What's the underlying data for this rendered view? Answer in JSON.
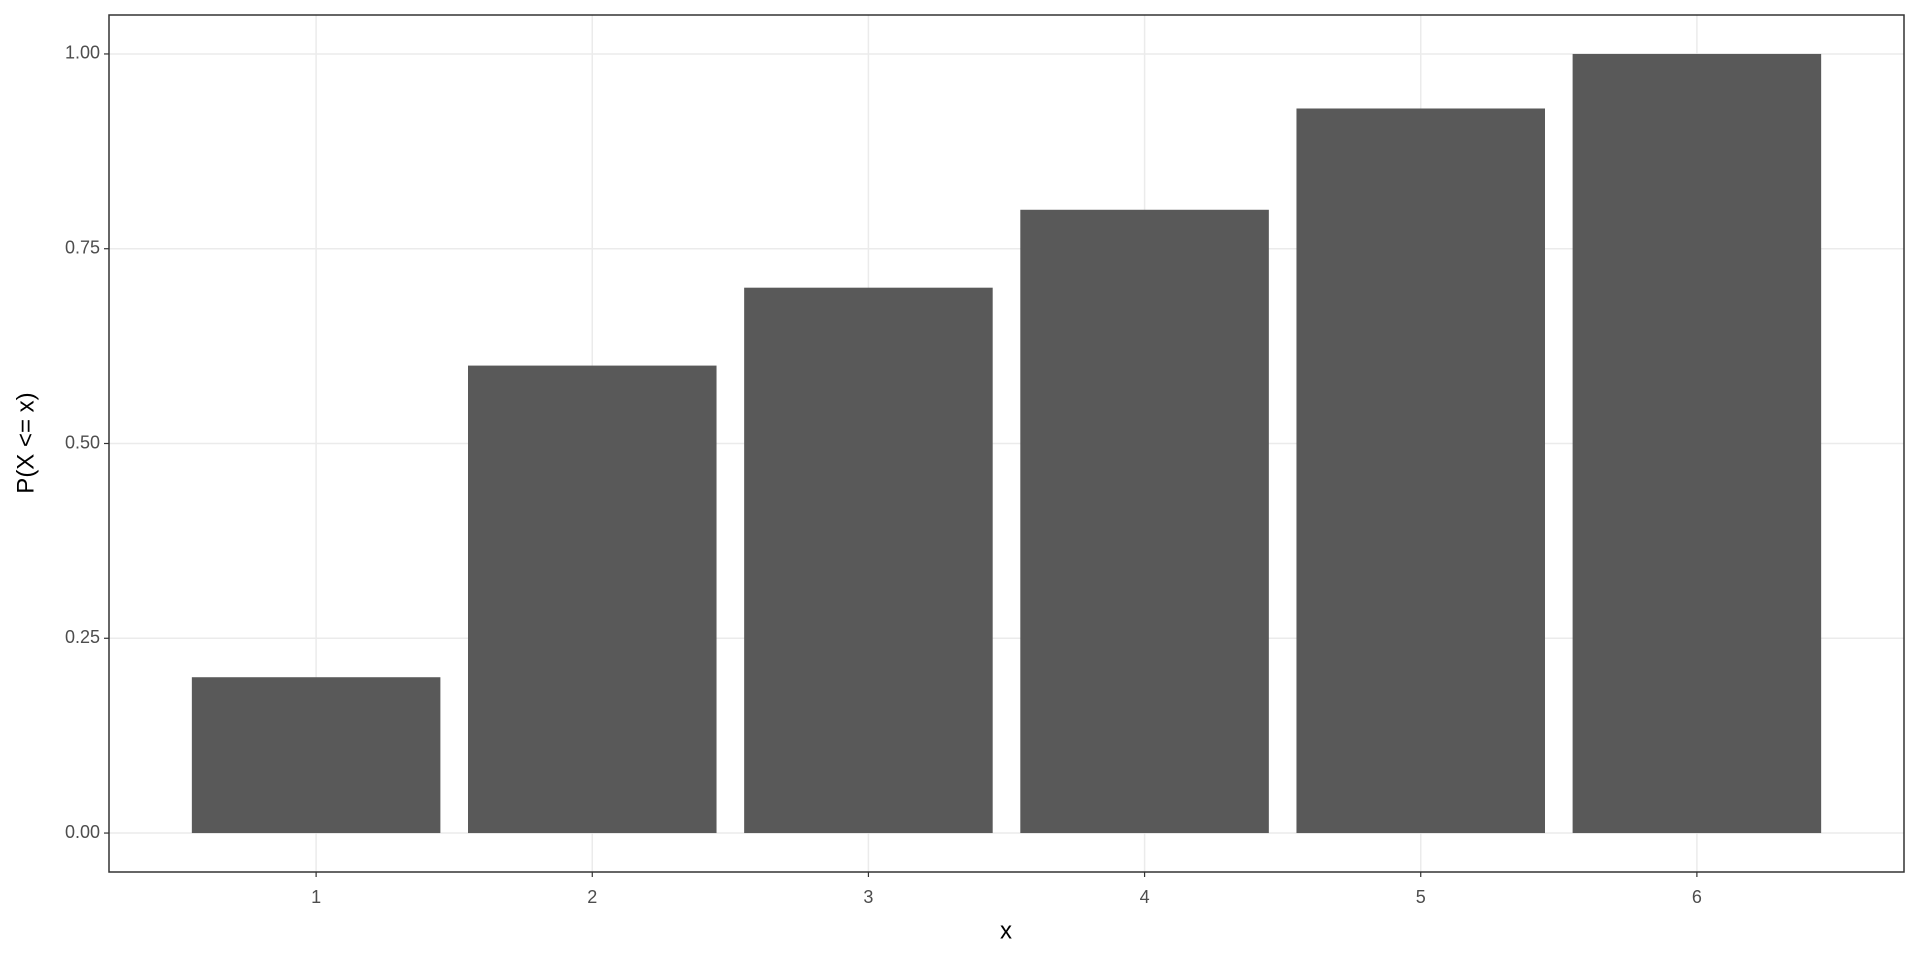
{
  "chart_data": {
    "type": "bar",
    "x_label": "x",
    "y_label": "P(X <= x)",
    "categories": [
      "1",
      "2",
      "3",
      "4",
      "5",
      "6"
    ],
    "values": [
      0.2,
      0.6,
      0.7,
      0.8,
      0.93,
      1.0
    ],
    "color": "#595959",
    "ylim": [
      -0.05,
      1.05
    ],
    "yticks": [
      {
        "value": 0,
        "label": "0.00"
      },
      {
        "value": 0.25,
        "label": "0.25"
      },
      {
        "value": 0.5,
        "label": "0.50"
      },
      {
        "value": 0.75,
        "label": "0.75"
      },
      {
        "value": 1,
        "label": "1.00"
      }
    ],
    "grid": true
  }
}
